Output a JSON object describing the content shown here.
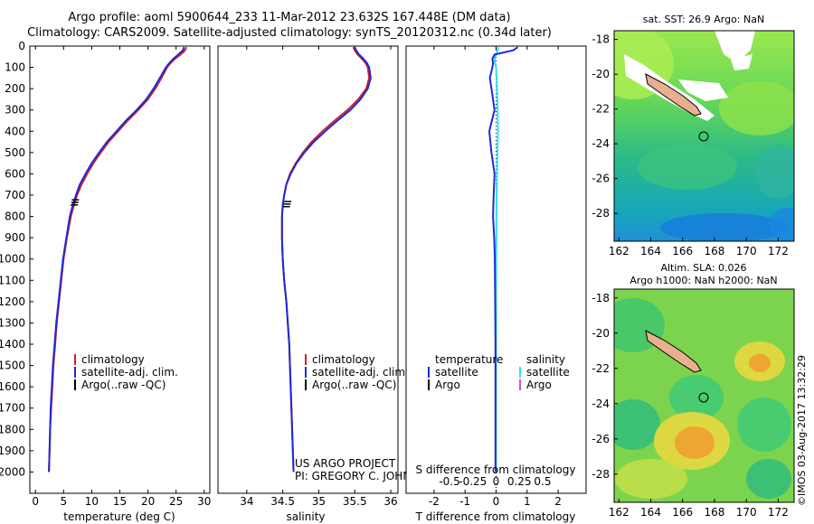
{
  "header": {
    "line1": "Argo profile: aoml 5900644_233 11-Mar-2012 23.632S 167.448E (DM data)",
    "line2": "Climatology: CARS2009. Satellite-adjusted climatology: synTS_20120312.nc (0.34d later)"
  },
  "credits": {
    "project": "US ARGO PROJECT",
    "pi": "PI: GREGORY C. JOHNSON"
  },
  "timestamp": "©IMOS 03-Aug-2017 13:32:29",
  "colors": {
    "clim": "#d42020",
    "sat": "#1c2ad8",
    "argo": "#000000",
    "sal_sat": "#30e0f0",
    "sal_argo": "#e040e0",
    "sea_light": "#3cc878",
    "sea_teal": "#1ea0b4",
    "land": "#e8b090"
  },
  "chart_data": [
    {
      "type": "line",
      "id": "temperature",
      "xlabel": "temperature (deg C)",
      "ylabel": "",
      "xlim": [
        -1,
        31
      ],
      "ylim": [
        0,
        2100
      ],
      "x_ticks": [
        0,
        5,
        10,
        15,
        20,
        25,
        30
      ],
      "y_ticks": [
        0,
        100,
        200,
        300,
        400,
        500,
        600,
        700,
        800,
        900,
        1000,
        1100,
        1200,
        1300,
        1400,
        1500,
        1600,
        1700,
        1800,
        1900,
        2000
      ],
      "legend": [
        "climatology",
        "satellite-adj. clim.",
        "Argo(..raw -QC)"
      ],
      "series": [
        {
          "name": "climatology",
          "depth": [
            5,
            20,
            40,
            60,
            80,
            100,
            150,
            200,
            250,
            300,
            350,
            400,
            450,
            500,
            550,
            600,
            650,
            700,
            750,
            800,
            900,
            1000,
            1100,
            1200,
            1300,
            1400,
            1500,
            1600,
            1700,
            1800,
            1900,
            2000
          ],
          "values": [
            26.8,
            26.6,
            25.8,
            24.8,
            24.0,
            23.4,
            22.4,
            21.3,
            20.0,
            18.3,
            16.4,
            14.7,
            13.0,
            11.6,
            10.3,
            9.2,
            8.2,
            7.4,
            6.8,
            6.3,
            5.6,
            5.0,
            4.6,
            4.2,
            3.8,
            3.5,
            3.2,
            3.0,
            2.8,
            2.6,
            2.5,
            2.4
          ]
        },
        {
          "name": "satellite-adj. clim.",
          "depth": [
            5,
            20,
            40,
            60,
            80,
            100,
            150,
            200,
            250,
            300,
            350,
            400,
            450,
            500,
            550,
            600,
            650,
            700,
            750,
            800,
            900,
            1000,
            1100,
            1200,
            1300,
            1400,
            1500,
            1600,
            1700,
            1800,
            1900,
            2000
          ],
          "values": [
            26.4,
            26.2,
            25.4,
            24.5,
            23.8,
            23.2,
            22.1,
            21.0,
            19.7,
            18.0,
            16.1,
            14.4,
            12.7,
            11.3,
            10.0,
            8.9,
            7.9,
            7.2,
            6.6,
            6.1,
            5.5,
            4.9,
            4.5,
            4.1,
            3.7,
            3.4,
            3.1,
            2.9,
            2.7,
            2.6,
            2.5,
            2.4
          ]
        }
      ],
      "argo_ticks": {
        "depth": [
          722,
          734,
          746
        ],
        "values": [
          7.1,
          7.0,
          6.9
        ]
      }
    },
    {
      "type": "line",
      "id": "salinity",
      "xlabel": "salinity",
      "ylabel": "",
      "xlim": [
        33.6,
        36.1
      ],
      "ylim": [
        0,
        2100
      ],
      "x_ticks": [
        34,
        34.5,
        35,
        35.5,
        36
      ],
      "legend": [
        "climatology",
        "satellite-adj. clim.",
        "Argo(..raw -QC)"
      ],
      "series": [
        {
          "name": "climatology",
          "depth": [
            5,
            20,
            40,
            60,
            80,
            100,
            150,
            200,
            250,
            300,
            350,
            400,
            450,
            500,
            550,
            600,
            650,
            700,
            750,
            800,
            900,
            1000,
            1100,
            1200,
            1300,
            1400,
            1500,
            1600,
            1700,
            1800,
            1900,
            2000
          ],
          "values": [
            35.48,
            35.5,
            35.54,
            35.6,
            35.65,
            35.68,
            35.7,
            35.66,
            35.55,
            35.4,
            35.22,
            35.05,
            34.9,
            34.78,
            34.68,
            34.6,
            34.55,
            34.52,
            34.5,
            34.49,
            34.49,
            34.5,
            34.52,
            34.55,
            34.57,
            34.59,
            34.6,
            34.61,
            34.62,
            34.63,
            34.64,
            34.65
          ]
        },
        {
          "name": "satellite-adj. clim.",
          "depth": [
            5,
            20,
            40,
            60,
            80,
            100,
            150,
            200,
            250,
            300,
            350,
            400,
            450,
            500,
            550,
            600,
            650,
            700,
            750,
            800,
            900,
            1000,
            1100,
            1200,
            1300,
            1400,
            1500,
            1600,
            1700,
            1800,
            1900,
            2000
          ],
          "values": [
            35.5,
            35.52,
            35.56,
            35.62,
            35.67,
            35.7,
            35.72,
            35.68,
            35.58,
            35.44,
            35.26,
            35.09,
            34.93,
            34.8,
            34.69,
            34.61,
            34.55,
            34.52,
            34.5,
            34.49,
            34.49,
            34.5,
            34.52,
            34.55,
            34.57,
            34.59,
            34.6,
            34.61,
            34.62,
            34.63,
            34.64,
            34.65
          ]
        }
      ],
      "argo_ticks": {
        "depth": [
          730,
          742,
          754
        ],
        "values": [
          34.57,
          34.56,
          34.55
        ]
      }
    },
    {
      "type": "line",
      "id": "difference",
      "xlabel_top": "S difference from climatology",
      "xlabel": "T difference from climatology",
      "xlim": [
        -2.9,
        2.9
      ],
      "ylim": [
        0,
        2100
      ],
      "x_ticks": [
        -2,
        -1,
        0,
        1,
        2
      ],
      "s_ticks": [
        {
          "v": -1.5,
          "label": "-0.5"
        },
        {
          "v": -0.75,
          "label": "-0.25"
        },
        {
          "v": 0,
          "label": "0"
        },
        {
          "v": 0.75,
          "label": "0.25"
        },
        {
          "v": 1.5,
          "label": "0.5"
        }
      ],
      "legend_t": {
        "head": "temperature",
        "sat": "satellite",
        "argo": "Argo"
      },
      "legend_s": {
        "head": "salinity",
        "sat": "satellite",
        "argo": "Argo"
      },
      "series": [
        {
          "name": "temperature satellite",
          "depth": [
            5,
            20,
            40,
            60,
            80,
            100,
            150,
            200,
            300,
            400,
            500,
            600,
            700,
            800,
            900,
            1000,
            1200,
            1400,
            1600,
            1800,
            2000
          ],
          "values": [
            0.7,
            0.55,
            -0.05,
            -0.12,
            -0.1,
            -0.12,
            -0.2,
            -0.15,
            -0.05,
            -0.22,
            -0.15,
            -0.05,
            -0.08,
            -0.1,
            -0.06,
            -0.04,
            -0.03,
            -0.02,
            -0.02,
            -0.02,
            -0.02
          ]
        },
        {
          "name": "salinity satellite",
          "depth": [
            5,
            20,
            40,
            60,
            80,
            100,
            200,
            300,
            400,
            500,
            600,
            700,
            800,
            900,
            1000,
            1200,
            1400,
            1600,
            1800,
            2000
          ],
          "values": [
            0.08,
            0.05,
            0.0,
            -0.05,
            -0.03,
            0.0,
            0.03,
            0.05,
            0.06,
            0.04,
            0.03,
            0.02,
            0.01,
            0.01,
            0.0,
            0.0,
            0.0,
            0.0,
            0.0,
            0.0
          ]
        }
      ]
    },
    {
      "type": "heatmap",
      "id": "sst_map",
      "title": "sat. SST: 26.9 Argo: NaN",
      "xlim": [
        161.7,
        173
      ],
      "ylim": [
        -29.6,
        -17.5
      ],
      "x_ticks": [
        162,
        164,
        166,
        168,
        170,
        172
      ],
      "y_ticks": [
        -18,
        -20,
        -22,
        -24,
        -26,
        -28
      ]
    },
    {
      "type": "heatmap",
      "id": "sla_map",
      "title1": "Altim. SLA: 0.026",
      "title2": "Argo h1000: NaN h2000: NaN",
      "xlim": [
        161.7,
        173
      ],
      "ylim": [
        -29.6,
        -17.5
      ],
      "x_ticks": [
        162,
        164,
        166,
        168,
        170,
        172
      ],
      "y_ticks": [
        -18,
        -20,
        -22,
        -24,
        -26,
        -28
      ]
    }
  ]
}
